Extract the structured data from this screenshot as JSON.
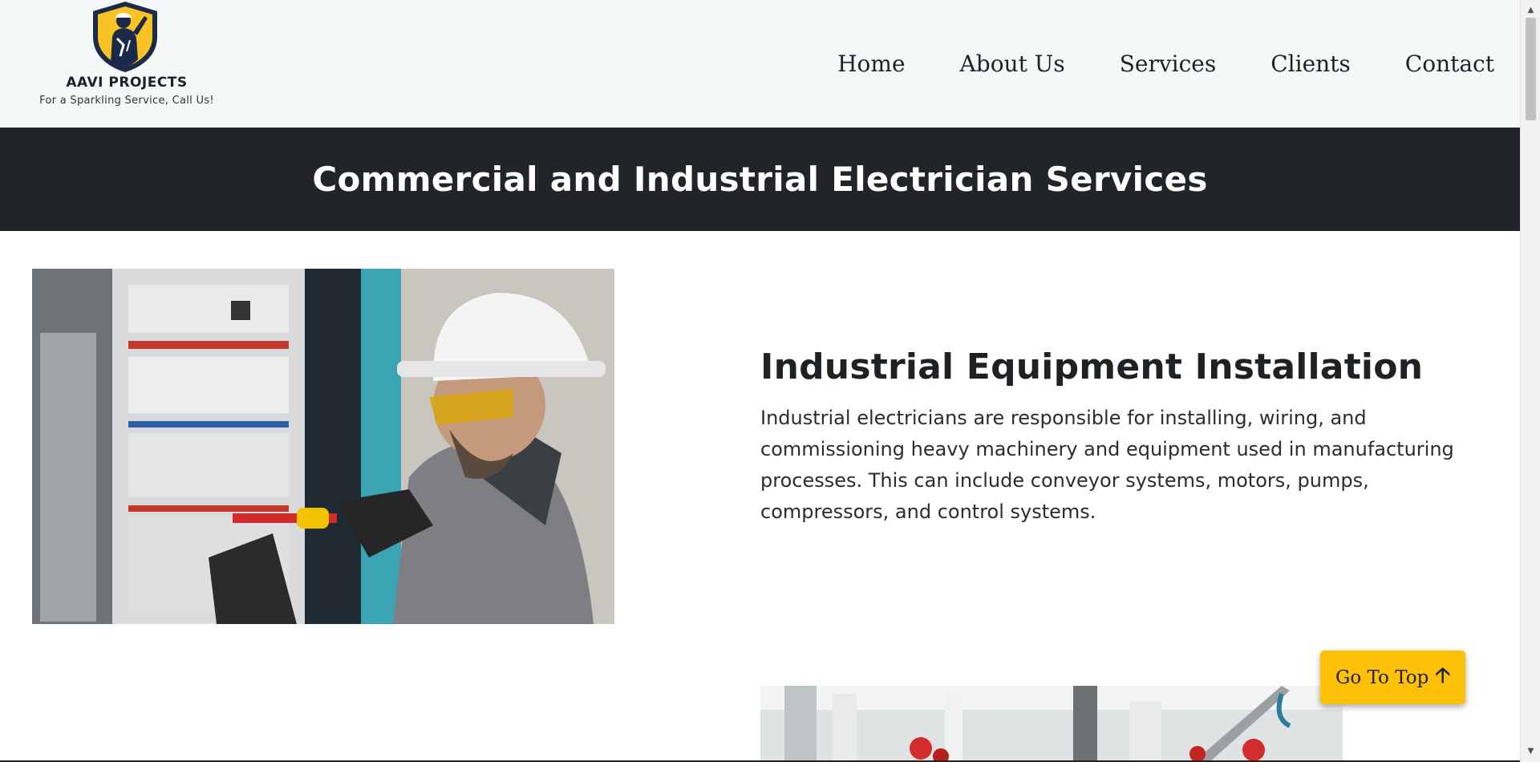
{
  "brand": {
    "name": "AAVI PROJECTS",
    "tagline": "For a Sparkling Service, Call Us!",
    "logo_icon": "electrician-shield-logo"
  },
  "nav": {
    "items": [
      {
        "label": "Home"
      },
      {
        "label": "About Us"
      },
      {
        "label": "Services"
      },
      {
        "label": "Clients"
      },
      {
        "label": "Contact"
      }
    ]
  },
  "page": {
    "title": "Commercial and Industrial Electrician Services"
  },
  "services": [
    {
      "title": "Industrial Equipment Installation",
      "description": "Industrial electricians are responsible for installing, wiring, and commissioning heavy machinery and equipment used in manufacturing processes. This can include conveyor systems, motors, pumps, compressors, and control systems."
    }
  ],
  "go_top": {
    "label": "Go To Top",
    "icon": "arrow-up-icon",
    "arrow": "🡡"
  },
  "colors": {
    "header_bg": "#f5f8f9",
    "title_band_bg": "#212529",
    "accent": "#ffc107",
    "text": "#1f2225"
  }
}
